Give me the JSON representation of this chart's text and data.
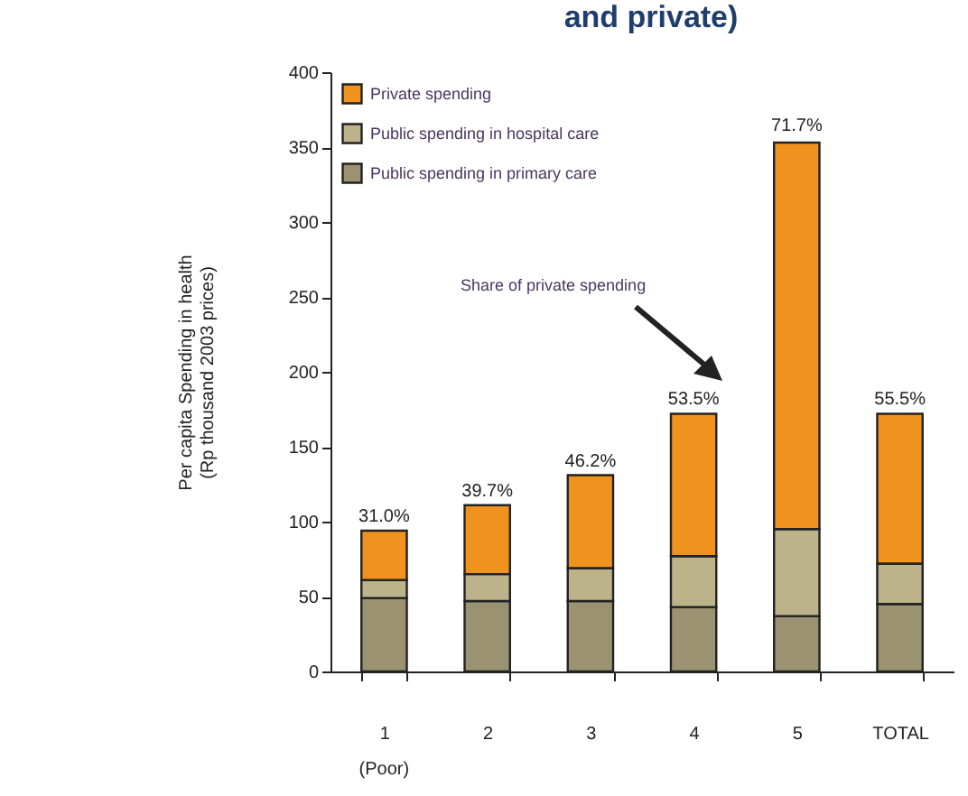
{
  "chart_data": {
    "type": "bar",
    "title": "and private)",
    "ylabel": "Per capita Spending in health\n(Rp thousand  2003 prices)",
    "categories": [
      "1",
      "2",
      "3",
      "4",
      "5",
      "TOTAL"
    ],
    "stacked": true,
    "series": [
      {
        "name": "Public spending in primary care",
        "color": "#9a9270",
        "values": [
          49,
          47,
          47,
          43,
          37,
          45
        ]
      },
      {
        "name": "Public spending in hospital care",
        "color": "#bcb38a",
        "values": [
          12,
          18,
          22,
          34,
          58,
          27
        ]
      },
      {
        "name": "Private spending",
        "color": "#f0921e",
        "values": [
          33,
          46,
          62,
          95,
          258,
          100
        ]
      }
    ],
    "annotations": [
      "Share of private spending",
      "(Poor)",
      {
        "text": "31.0%",
        "x": "1",
        "y": 94
      },
      {
        "text": "39.7%",
        "x": "2",
        "y": 111
      },
      {
        "text": "46.2%",
        "x": "3",
        "y": 131
      },
      {
        "text": "53.5%",
        "x": "4",
        "y": 172
      },
      {
        "text": "71.7%",
        "x": "5",
        "y": 355
      },
      {
        "text": "55.5%",
        "x": "TOTAL",
        "y": 172
      }
    ],
    "ylim": [
      0,
      400
    ],
    "yticks": [
      0,
      50,
      100,
      150,
      200,
      250,
      300,
      350,
      400
    ],
    "legend": "top left",
    "grid": false
  }
}
